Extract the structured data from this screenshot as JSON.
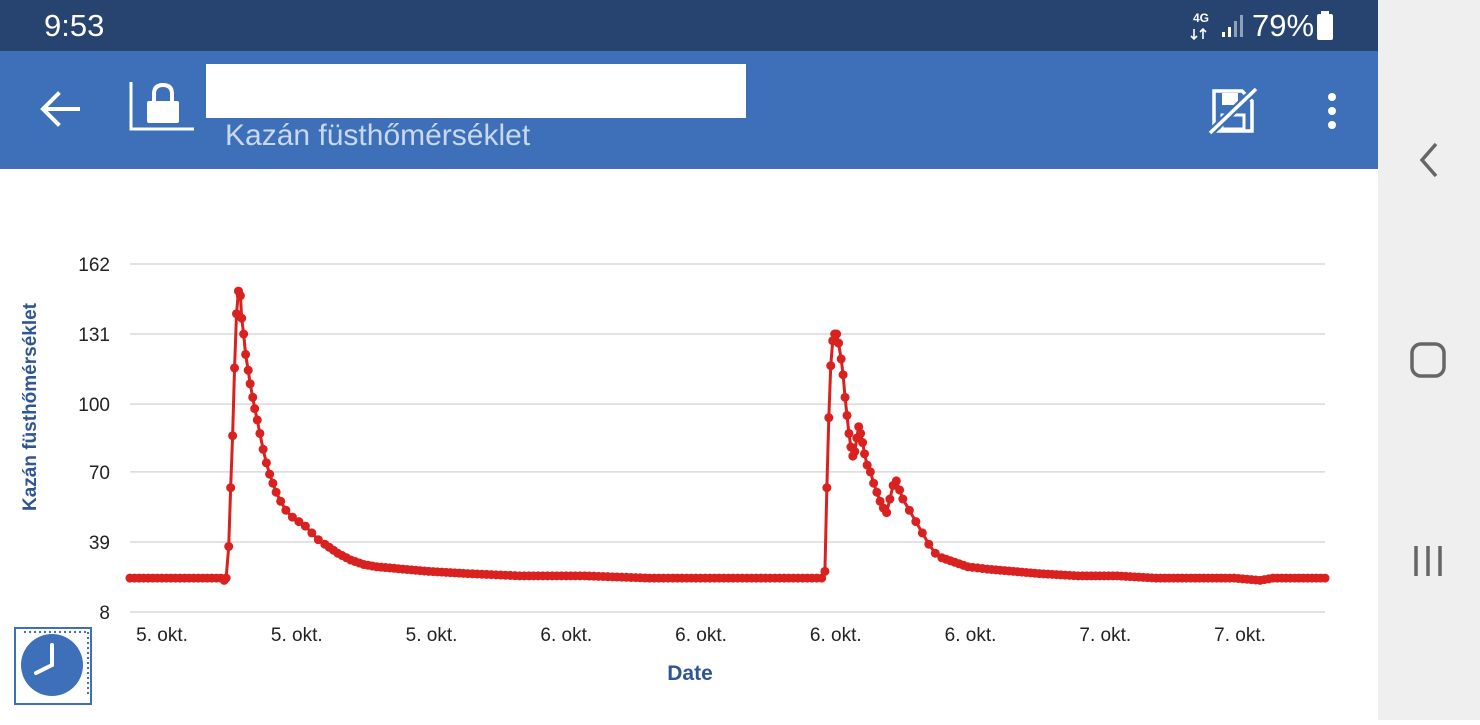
{
  "status_bar": {
    "time": "9:53",
    "network": "4G",
    "battery": "79%"
  },
  "app_bar": {
    "title": "",
    "subtitle": "Kazán füsthőmérséklet",
    "back_icon": "arrow-left-icon",
    "lock_icon": "lock-icon",
    "export_icon": "no-save-icon",
    "menu_icon": "more-vert-icon"
  },
  "colors": {
    "status_bar": "#274370",
    "app_bar": "#3d70b8",
    "series": "#d9211f",
    "axis_label": "#2f5596"
  },
  "chart_data": {
    "type": "line",
    "xlabel": "Date",
    "ylabel": "Kazán füsthőmérséklet",
    "ylim": [
      8,
      162
    ],
    "yticks": [
      162,
      131,
      100,
      70,
      39,
      8
    ],
    "xtick_labels": [
      "5. okt.",
      "5. okt.",
      "5. okt.",
      "6. okt.",
      "6. okt.",
      "6. okt.",
      "6. okt.",
      "7. okt.",
      "7. okt."
    ],
    "grid": true,
    "series": [
      {
        "color": "#d9211f",
        "points": [
          [
            0,
            23
          ],
          [
            14,
            23
          ],
          [
            14.5,
            22
          ],
          [
            14.8,
            23
          ],
          [
            15.2,
            37
          ],
          [
            15.5,
            63
          ],
          [
            15.8,
            86
          ],
          [
            16.1,
            116
          ],
          [
            16.4,
            140
          ],
          [
            16.7,
            150
          ],
          [
            17,
            148
          ],
          [
            17.2,
            138
          ],
          [
            17.5,
            131
          ],
          [
            17.8,
            122
          ],
          [
            18.2,
            115
          ],
          [
            18.5,
            109
          ],
          [
            18.9,
            103
          ],
          [
            19.2,
            98
          ],
          [
            19.6,
            93
          ],
          [
            20,
            87
          ],
          [
            20.5,
            80
          ],
          [
            21,
            74
          ],
          [
            21.5,
            69
          ],
          [
            22,
            65
          ],
          [
            22.5,
            61
          ],
          [
            23.2,
            57
          ],
          [
            24,
            53
          ],
          [
            25,
            50
          ],
          [
            26,
            48
          ],
          [
            27,
            46
          ],
          [
            28,
            43
          ],
          [
            29,
            40
          ],
          [
            30,
            38
          ],
          [
            32,
            34
          ],
          [
            34,
            31
          ],
          [
            36,
            29
          ],
          [
            38,
            28
          ],
          [
            42,
            27
          ],
          [
            46,
            26
          ],
          [
            52,
            25
          ],
          [
            60,
            24
          ],
          [
            70,
            24
          ],
          [
            80,
            23
          ],
          [
            90,
            23
          ],
          [
            100,
            23
          ],
          [
            105,
            23
          ],
          [
            106.5,
            23
          ],
          [
            107,
            26
          ],
          [
            107.3,
            63
          ],
          [
            107.6,
            94
          ],
          [
            107.9,
            117
          ],
          [
            108.2,
            128
          ],
          [
            108.5,
            131
          ],
          [
            108.8,
            131
          ],
          [
            109.1,
            127
          ],
          [
            109.5,
            120
          ],
          [
            109.8,
            113
          ],
          [
            110.1,
            103
          ],
          [
            110.4,
            95
          ],
          [
            110.7,
            87
          ],
          [
            111,
            81
          ],
          [
            111.3,
            77
          ],
          [
            111.6,
            79
          ],
          [
            111.9,
            85
          ],
          [
            112.2,
            90
          ],
          [
            112.5,
            87
          ],
          [
            112.8,
            83
          ],
          [
            113.1,
            78
          ],
          [
            113.5,
            73
          ],
          [
            114,
            70
          ],
          [
            114.5,
            65
          ],
          [
            115,
            61
          ],
          [
            115.5,
            57
          ],
          [
            116,
            54
          ],
          [
            116.5,
            52
          ],
          [
            117,
            58
          ],
          [
            117.5,
            64
          ],
          [
            118,
            66
          ],
          [
            118.5,
            62
          ],
          [
            119,
            58
          ],
          [
            120,
            53
          ],
          [
            121,
            48
          ],
          [
            122,
            43
          ],
          [
            123,
            38
          ],
          [
            124,
            34
          ],
          [
            125,
            32
          ],
          [
            127,
            30
          ],
          [
            129,
            28
          ],
          [
            132,
            27
          ],
          [
            136,
            26
          ],
          [
            140,
            25
          ],
          [
            146,
            24
          ],
          [
            152,
            24
          ],
          [
            158,
            23
          ],
          [
            164,
            23
          ],
          [
            170,
            23
          ],
          [
            174,
            22
          ],
          [
            176,
            23
          ],
          [
            180,
            23
          ],
          [
            184,
            23
          ]
        ]
      }
    ]
  }
}
